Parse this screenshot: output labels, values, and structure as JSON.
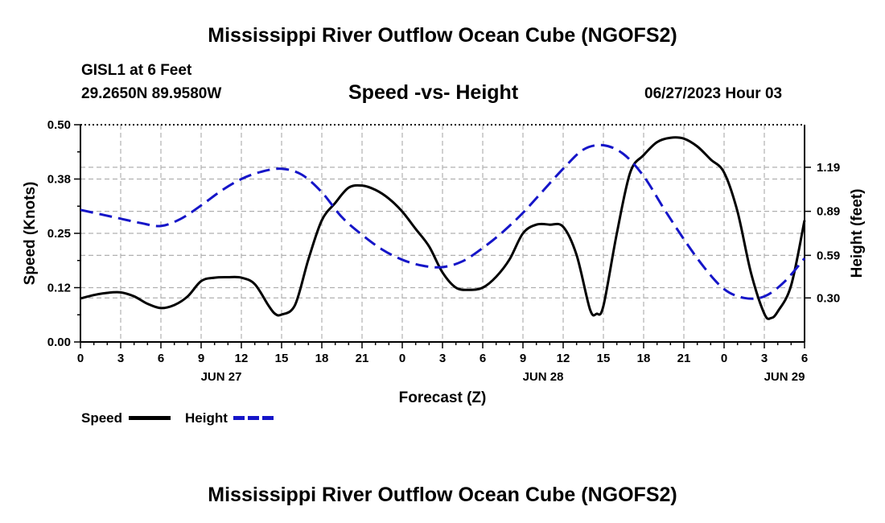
{
  "page": {
    "title": "Mississippi River Outflow Ocean Cube (NGOFS2)",
    "footer_title": "Mississippi River Outflow Ocean Cube (NGOFS2)",
    "station": "GISL1 at 6 Feet",
    "coords": "29.2650N  89.9580W",
    "subtitle": "Speed -vs- Height",
    "datetime": "06/27/2023 Hour 03"
  },
  "colors": {
    "speed": "#000000",
    "height": "#1515c8",
    "grid": "#b0b0b0"
  },
  "chart_data": {
    "type": "line",
    "title": "Speed -vs- Height",
    "xlabel": "Forecast (Z)",
    "ylabel": "Speed (Knots)",
    "y2label": "Height (feet)",
    "xlim": [
      0,
      54
    ],
    "x_ticks": [
      0,
      3,
      6,
      9,
      12,
      15,
      18,
      21,
      24,
      27,
      30,
      33,
      36,
      39,
      42,
      45,
      48,
      51,
      54
    ],
    "x_tick_labels": [
      "0",
      "3",
      "6",
      "9",
      "12",
      "15",
      "18",
      "21",
      "0",
      "3",
      "6",
      "9",
      "12",
      "15",
      "18",
      "21",
      "0",
      "3",
      "6"
    ],
    "day_labels": [
      {
        "x": 10.5,
        "label": "JUN 27"
      },
      {
        "x": 34.5,
        "label": "JUN 28"
      },
      {
        "x": 52.5,
        "label": "JUN 29"
      }
    ],
    "ylim": [
      0,
      0.5
    ],
    "y_ticks": [
      0,
      0.125,
      0.25,
      0.375,
      0.5
    ],
    "y_tick_labels": [
      "0.00",
      "0.12",
      "0.25",
      "0.38",
      "0.50"
    ],
    "y2lim": [
      0,
      1.48
    ],
    "y2_ticks": [
      0.3,
      0.59,
      0.89,
      1.19
    ],
    "y2_tick_labels": [
      "0.30",
      "0.59",
      "0.89",
      "1.19"
    ],
    "legend": [
      {
        "name": "Speed",
        "style": "solid"
      },
      {
        "name": "Height",
        "style": "dashed"
      }
    ],
    "series": [
      {
        "name": "Speed",
        "axis": "left",
        "style": "solid",
        "x": [
          0,
          1,
          2,
          3,
          4,
          5,
          6,
          7,
          8,
          9,
          10,
          11,
          12,
          13,
          14,
          14.5,
          15,
          16,
          17,
          18,
          19,
          20,
          21,
          22,
          23,
          24,
          25,
          26,
          27,
          28,
          29,
          30,
          31,
          32,
          33,
          34,
          35,
          36,
          37,
          38,
          38.5,
          39,
          40,
          41,
          42,
          43,
          44,
          45,
          46,
          47,
          48,
          49,
          50,
          51,
          51.5,
          52,
          53,
          54
        ],
        "values": [
          0.1,
          0.108,
          0.113,
          0.114,
          0.105,
          0.088,
          0.078,
          0.085,
          0.105,
          0.14,
          0.148,
          0.149,
          0.148,
          0.133,
          0.085,
          0.065,
          0.063,
          0.085,
          0.19,
          0.28,
          0.32,
          0.355,
          0.36,
          0.35,
          0.33,
          0.3,
          0.26,
          0.22,
          0.16,
          0.125,
          0.12,
          0.125,
          0.15,
          0.19,
          0.25,
          0.27,
          0.27,
          0.265,
          0.2,
          0.075,
          0.065,
          0.083,
          0.25,
          0.39,
          0.43,
          0.46,
          0.47,
          0.468,
          0.45,
          0.42,
          0.39,
          0.3,
          0.16,
          0.065,
          0.055,
          0.07,
          0.13,
          0.28
        ]
      },
      {
        "name": "Height",
        "axis": "right",
        "style": "dashed",
        "x": [
          0,
          1.5,
          3,
          4.5,
          6,
          7.5,
          9,
          10.5,
          12,
          13.5,
          15,
          16.5,
          18,
          19.5,
          21,
          22.5,
          24,
          25.5,
          27,
          28.5,
          30,
          31.5,
          33,
          34.5,
          36,
          37.5,
          39,
          40.5,
          42,
          43.5,
          45,
          46.5,
          48,
          49.5,
          51,
          52.5,
          54
        ],
        "values": [
          0.9,
          0.87,
          0.84,
          0.81,
          0.79,
          0.84,
          0.93,
          1.03,
          1.11,
          1.16,
          1.18,
          1.14,
          1.02,
          0.85,
          0.73,
          0.63,
          0.56,
          0.52,
          0.51,
          0.55,
          0.64,
          0.75,
          0.88,
          1.03,
          1.18,
          1.31,
          1.34,
          1.28,
          1.13,
          0.91,
          0.7,
          0.51,
          0.36,
          0.3,
          0.31,
          0.41,
          0.57
        ]
      }
    ]
  }
}
